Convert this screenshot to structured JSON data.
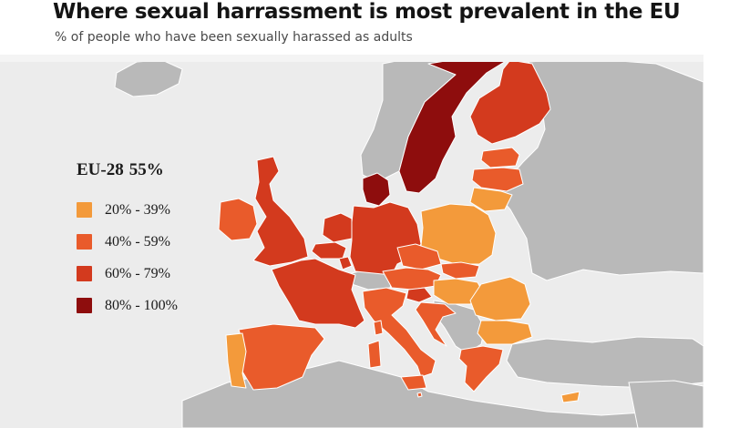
{
  "title": "Where sexual harrassment is most prevalent in the EU",
  "subtitle": "% of people who have been sexually harassed as adults",
  "summary": {
    "label": "EU-28",
    "value": "55%"
  },
  "legend": [
    {
      "label": "20% - 39%",
      "color": "#f39a3b"
    },
    {
      "label": "40% - 59%",
      "color": "#e95b2b"
    },
    {
      "label": "60% - 79%",
      "color": "#d33a1e"
    },
    {
      "label": "80% - 100%",
      "color": "#8e0d0d"
    }
  ],
  "colors": {
    "water": "#ececec",
    "non_eu_land": "#b9b9b9",
    "border": "#ffffff"
  },
  "regions": [
    {
      "name": "Sweden",
      "tier": 3
    },
    {
      "name": "Denmark",
      "tier": 3
    },
    {
      "name": "Finland",
      "tier": 2
    },
    {
      "name": "France",
      "tier": 2
    },
    {
      "name": "Netherlands",
      "tier": 2
    },
    {
      "name": "United Kingdom",
      "tier": 2
    },
    {
      "name": "Germany",
      "tier": 2
    },
    {
      "name": "Belgium",
      "tier": 2
    },
    {
      "name": "Luxembourg",
      "tier": 2
    },
    {
      "name": "Slovenia",
      "tier": 2
    },
    {
      "name": "Latvia",
      "tier": 1
    },
    {
      "name": "Estonia",
      "tier": 1
    },
    {
      "name": "Ireland",
      "tier": 1
    },
    {
      "name": "Italy",
      "tier": 1
    },
    {
      "name": "Austria",
      "tier": 1
    },
    {
      "name": "Czechia",
      "tier": 1
    },
    {
      "name": "Slovakia",
      "tier": 1
    },
    {
      "name": "Spain",
      "tier": 1
    },
    {
      "name": "Croatia",
      "tier": 1
    },
    {
      "name": "Greece",
      "tier": 1
    },
    {
      "name": "Malta",
      "tier": 1
    },
    {
      "name": "Sardinia",
      "tier": 1
    },
    {
      "name": "Corsica",
      "tier": 1
    },
    {
      "name": "Sicily",
      "tier": 1
    },
    {
      "name": "Lithuania",
      "tier": 0
    },
    {
      "name": "Poland",
      "tier": 0
    },
    {
      "name": "Hungary",
      "tier": 0
    },
    {
      "name": "Romania",
      "tier": 0
    },
    {
      "name": "Bulgaria",
      "tier": 0
    },
    {
      "name": "Portugal",
      "tier": 0
    },
    {
      "name": "Cyprus",
      "tier": 0
    }
  ]
}
